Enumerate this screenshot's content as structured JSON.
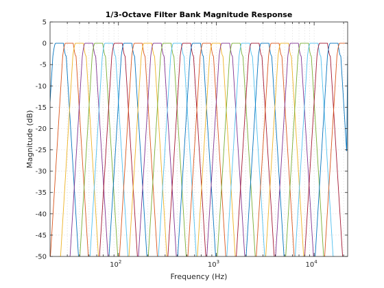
{
  "chart_data": {
    "type": "line",
    "title": "1/3-Octave Filter Bank Magnitude Response",
    "xlabel": "Frequency (Hz)",
    "ylabel": "Magnitude (dB)",
    "xscale": "log",
    "xlim": [
      20,
      22000
    ],
    "ylim": [
      -50,
      5
    ],
    "grid": true,
    "yticks": [
      5,
      0,
      -5,
      -10,
      -15,
      -20,
      -25,
      -30,
      -35,
      -40,
      -45,
      -50
    ],
    "ytick_labels": [
      "5",
      "0",
      "-5",
      "-10",
      "-15",
      "-20",
      "-25",
      "-30",
      "-35",
      "-40",
      "-45",
      "-50"
    ],
    "xticks": [
      100,
      1000,
      10000
    ],
    "xtick_labels": [
      {
        "base": "10",
        "exp": "2"
      },
      {
        "base": "10",
        "exp": "3"
      },
      {
        "base": "10",
        "exp": "4"
      }
    ],
    "band_centers_hz": [
      25,
      31.5,
      40,
      50,
      63,
      80,
      100,
      125,
      160,
      200,
      250,
      315,
      400,
      500,
      630,
      800,
      1000,
      1250,
      1600,
      2000,
      2500,
      3150,
      4000,
      5000,
      6300,
      8000,
      10000,
      12500,
      16000,
      20000
    ],
    "passband_db": 0,
    "series_colors": [
      "#0072bd",
      "#d95319",
      "#edb120",
      "#7e2f8e",
      "#77ac30",
      "#4dbeee",
      "#a2142f"
    ]
  }
}
